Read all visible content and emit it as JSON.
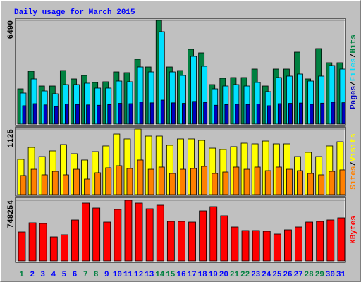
{
  "title": "Daily usage for March 2015",
  "legend_separator": "/",
  "chart_data": [
    {
      "type": "bar",
      "ylim": [
        0,
        6490
      ],
      "yticks": [
        6490
      ],
      "series": [
        {
          "name": "Hits",
          "color": "#008040",
          "values": [
            2207,
            3311,
            2384,
            2384,
            3355,
            2826,
            3046,
            2605,
            2649,
            3267,
            3223,
            4062,
            3576,
            6490,
            3576,
            3355,
            4680,
            4459,
            2472,
            2870,
            2914,
            2914,
            3444,
            2384,
            3444,
            3444,
            4503,
            2826,
            4724,
            3841,
            3841
          ]
        },
        {
          "name": "Files",
          "color": "#00e0ff",
          "values": [
            1943,
            2826,
            2075,
            1898,
            2472,
            2472,
            2561,
            2252,
            2252,
            2693,
            2649,
            3576,
            3267,
            5784,
            3267,
            3046,
            4238,
            3620,
            2207,
            2384,
            2472,
            2384,
            2605,
            2031,
            2914,
            3002,
            3135,
            2693,
            3002,
            3664,
            3444
          ]
        },
        {
          "name": "Pages",
          "color": "#0000c0",
          "values": [
            1150,
            1280,
            1200,
            1100,
            1250,
            1230,
            1200,
            1180,
            1220,
            1300,
            1280,
            1380,
            1330,
            1500,
            1330,
            1300,
            1420,
            1360,
            1180,
            1220,
            1240,
            1230,
            1260,
            1150,
            1280,
            1300,
            1320,
            1240,
            1310,
            1370,
            1340
          ]
        }
      ]
    },
    {
      "type": "bar",
      "ylim": [
        0,
        1125
      ],
      "yticks": [
        1125
      ],
      "series": [
        {
          "name": "Visits",
          "color": "#ffff00",
          "values": [
            605,
            810,
            653,
            750,
            859,
            702,
            593,
            738,
            835,
            1040,
            956,
            1125,
            1004,
            1004,
            847,
            956,
            956,
            931,
            798,
            774,
            823,
            883,
            871,
            919,
            871,
            871,
            653,
            726,
            653,
            835,
            907
          ]
        },
        {
          "name": "Sites",
          "color": "#ff8000",
          "values": [
            327,
            435,
            339,
            399,
            339,
            435,
            266,
            375,
            460,
            496,
            448,
            593,
            435,
            472,
            363,
            435,
            448,
            484,
            363,
            387,
            472,
            435,
            472,
            411,
            472,
            435,
            411,
            363,
            339,
            399,
            424
          ]
        }
      ]
    },
    {
      "type": "bar",
      "ylim": [
        0,
        748254
      ],
      "yticks": [
        748254
      ],
      "categories": [
        "1",
        "2",
        "3",
        "4",
        "5",
        "6",
        "7",
        "8",
        "9",
        "10",
        "11",
        "12",
        "13",
        "14",
        "15",
        "16",
        "17",
        "18",
        "19",
        "20",
        "21",
        "22",
        "23",
        "24",
        "25",
        "26",
        "27",
        "28",
        "29",
        "30",
        "31"
      ],
      "category_colors": [
        "#008040",
        "#0000ff",
        "#0000ff",
        "#0000ff",
        "#0000ff",
        "#0000ff",
        "#008040",
        "#008040",
        "#0000ff",
        "#0000ff",
        "#0000ff",
        "#0000ff",
        "#0000ff",
        "#008040",
        "#008040",
        "#0000ff",
        "#0000ff",
        "#0000ff",
        "#0000ff",
        "#0000ff",
        "#008040",
        "#008040",
        "#0000ff",
        "#0000ff",
        "#0000ff",
        "#0000ff",
        "#0000ff",
        "#008040",
        "#008040",
        "#0000ff",
        "#0000ff"
      ],
      "series": [
        {
          "name": "KBytes",
          "color": "#ff0000",
          "values": [
            356741,
            469854,
            461153,
            295834,
            321937,
            504658,
            713482,
            652575,
            478555,
            635173,
            748254,
            713482,
            643874,
            687379,
            487256,
            487256,
            478555,
            617771,
            669977,
            556864,
            417648,
            374143,
            374143,
            365442,
            330638,
            382844,
            417648,
            478555,
            487256,
            504658,
            530761
          ]
        }
      ]
    }
  ]
}
